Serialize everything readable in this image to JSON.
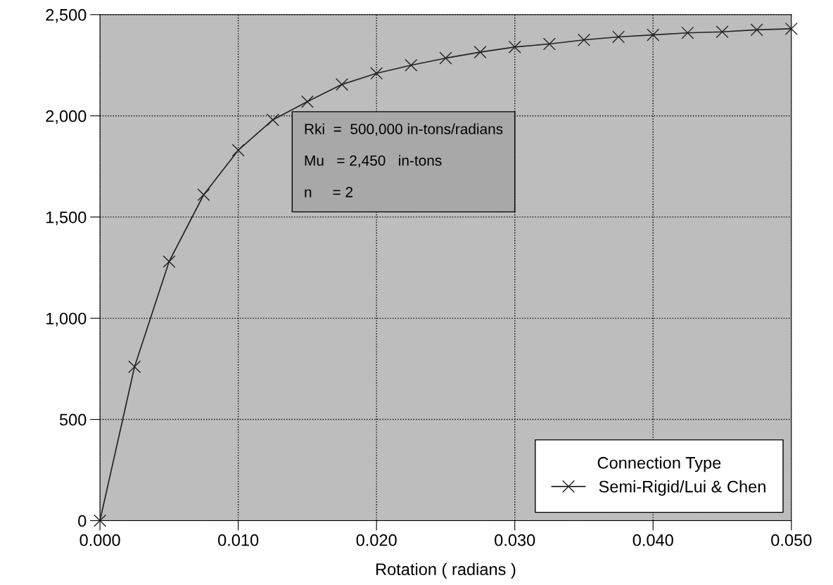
{
  "chart_data": {
    "type": "line",
    "xlabel": "Rotation ( radians )",
    "x": [
      0,
      0.0025,
      0.005,
      0.0075,
      0.01,
      0.0125,
      0.015,
      0.0175,
      0.02,
      0.0225,
      0.025,
      0.0275,
      0.03,
      0.0325,
      0.035,
      0.0375,
      0.04,
      0.0425,
      0.045,
      0.0475,
      0.05
    ],
    "series": [
      {
        "name": "Semi-Rigid/Lui & Chen",
        "color": "#222222",
        "values": [
          0,
          760,
          1280,
          1610,
          1830,
          1980,
          2070,
          2155,
          2210,
          2250,
          2285,
          2315,
          2340,
          2355,
          2375,
          2390,
          2400,
          2410,
          2415,
          2425,
          2430
        ]
      }
    ],
    "xlim": [
      0,
      0.05
    ],
    "xticks": [
      {
        "value": 0,
        "label": "0.000"
      },
      {
        "value": 0.01,
        "label": "0.010"
      },
      {
        "value": 0.02,
        "label": "0.020"
      },
      {
        "value": 0.03,
        "label": "0.030"
      },
      {
        "value": 0.04,
        "label": "0.040"
      },
      {
        "value": 0.05,
        "label": "0.050"
      }
    ],
    "ylim": [
      0,
      2500
    ],
    "yticks": [
      {
        "value": 0,
        "label": "0"
      },
      {
        "value": 500,
        "label": "500"
      },
      {
        "value": 1000,
        "label": "1,000"
      },
      {
        "value": 1500,
        "label": "1,500"
      },
      {
        "value": 2000,
        "label": "2,000"
      },
      {
        "value": 2500,
        "label": "2,500"
      }
    ],
    "annotations": [
      "Rki  =  500,000 in-tons/radians\n\nMu   = 2,450   in-tons\n\nn     = 2"
    ],
    "legend": "bottom right",
    "legend_title": "Connection Type",
    "grid": true,
    "marker": "cross",
    "line_style": "solid"
  }
}
